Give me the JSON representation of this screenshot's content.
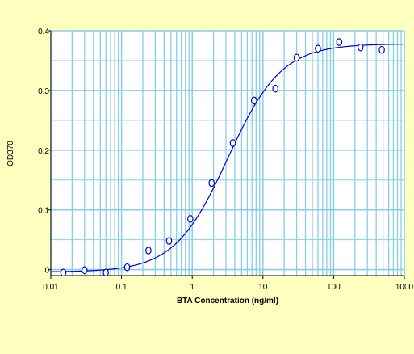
{
  "chart_data": {
    "type": "scatter",
    "title": "",
    "xlabel": "BTA Concentration (ng/ml)",
    "ylabel": "OD370",
    "x_scale": "log",
    "xlim": [
      0.01,
      1000
    ],
    "ylim": [
      -0.01,
      0.4
    ],
    "x_tick_labels": [
      "0.01",
      "0.1",
      "1",
      "10",
      "100",
      "1000"
    ],
    "y_tick_labels": [
      "0",
      "0.1",
      "0.2",
      "0.3",
      "0.4"
    ],
    "y_ticks": [
      0,
      0.1,
      0.2,
      0.3,
      0.4
    ],
    "grid": true,
    "colors": {
      "background": "#ffffc0",
      "plot_area": "#ffffff",
      "grid": "#87ceeb",
      "series": "#0000cc"
    },
    "series": [
      {
        "type": "scatter",
        "marker": "diamond",
        "x": [
          0.015,
          0.03,
          0.06,
          0.12,
          0.24,
          0.47,
          0.94,
          1.88,
          3.75,
          7.5,
          15,
          30,
          60,
          120,
          240,
          480
        ],
        "y": [
          -0.005,
          -0.001,
          -0.005,
          0.004,
          0.032,
          0.048,
          0.085,
          0.145,
          0.212,
          0.283,
          0.303,
          0.355,
          0.37,
          0.381,
          0.372,
          0.368
        ]
      },
      {
        "type": "line",
        "fit": "4PL",
        "bottom": -0.004,
        "top": 0.378,
        "ec50": 3.2,
        "hill": 1.15
      }
    ]
  }
}
